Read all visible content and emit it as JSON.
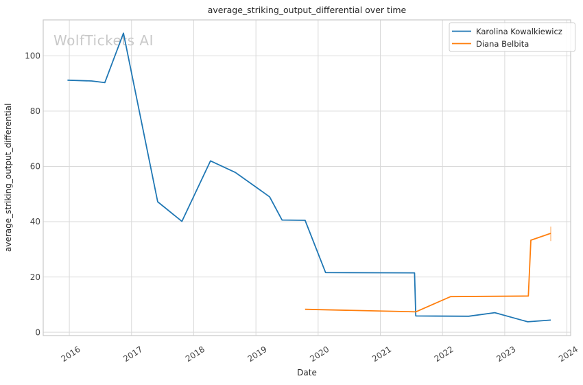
{
  "watermark": {
    "text": "WolfTickets AI"
  },
  "chart_data": {
    "type": "line",
    "title": "average_striking_output_differential over time",
    "xlabel": "Date",
    "ylabel": "average_striking_output_differential",
    "xlim": [
      2015.58,
      2024.06
    ],
    "ylim": [
      -1.2,
      113
    ],
    "xticks": [
      2016,
      2017,
      2018,
      2019,
      2020,
      2021,
      2022,
      2023,
      2024
    ],
    "yticks": [
      0,
      20,
      40,
      60,
      80,
      100
    ],
    "grid": true,
    "legend_position": "upper right",
    "series": [
      {
        "name": "Karolina Kowalkiewicz",
        "color": "#1f77b4",
        "points": [
          [
            2015.97,
            91.2
          ],
          [
            2016.36,
            90.9
          ],
          [
            2016.57,
            90.3
          ],
          [
            2016.87,
            108.2
          ],
          [
            2017.42,
            47.2
          ],
          [
            2017.81,
            40.1
          ],
          [
            2018.27,
            62.0
          ],
          [
            2018.67,
            57.8
          ],
          [
            2019.22,
            49.0
          ],
          [
            2019.42,
            40.6
          ],
          [
            2019.79,
            40.5
          ],
          [
            2020.12,
            21.6
          ],
          [
            2021.55,
            21.5
          ],
          [
            2021.57,
            5.9
          ],
          [
            2022.42,
            5.8
          ],
          [
            2022.84,
            7.1
          ],
          [
            2023.37,
            3.8
          ],
          [
            2023.74,
            4.4
          ]
        ]
      },
      {
        "name": "Diana Belbita",
        "color": "#ff7f0e",
        "points": [
          [
            2019.79,
            8.3
          ],
          [
            2021.57,
            7.4
          ],
          [
            2022.13,
            12.9
          ],
          [
            2023.38,
            13.1
          ],
          [
            2023.42,
            33.3
          ],
          [
            2023.74,
            35.8
          ]
        ],
        "error_bar": {
          "x": 2023.74,
          "low": 33.0,
          "high": 38.2,
          "color": "rgba(255,127,14,0.45)"
        }
      }
    ]
  }
}
